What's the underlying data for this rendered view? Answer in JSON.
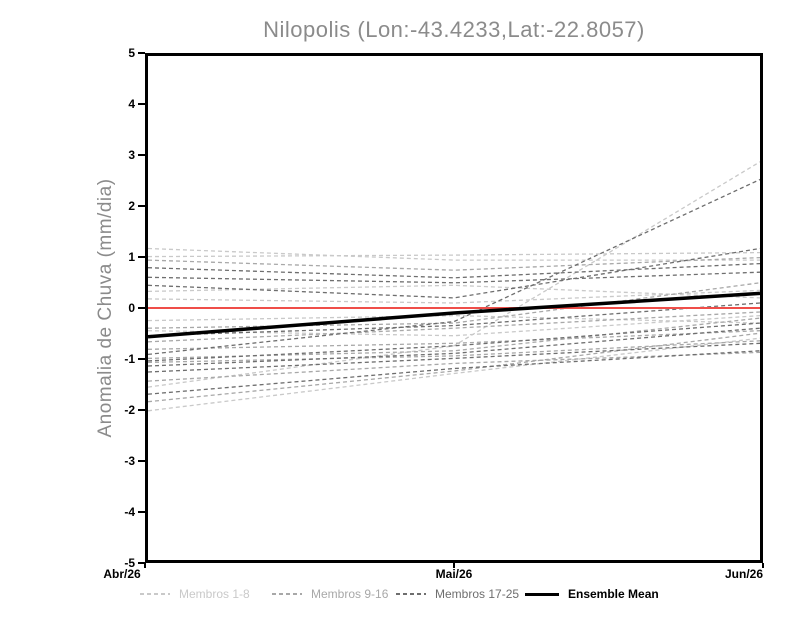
{
  "chart_data": {
    "type": "line",
    "title": "Nilopolis (Lon:-43.4233,Lat:-22.8057)",
    "ylabel": "Anomalia de Chuva (mm/dia)",
    "xlabel": "",
    "x_tick_labels": [
      "Abr/26",
      "Mai/26",
      "Jun/26"
    ],
    "y_ticks": [
      5,
      4,
      3,
      2,
      1,
      0,
      -1,
      -2,
      -3,
      -4,
      -5
    ],
    "ylim": [
      -5,
      5
    ],
    "grid": false,
    "legend_position": "bottom",
    "frame_color": "#000000",
    "zero_line": {
      "name": "zero-line",
      "color": "#ef4e49",
      "values": [
        0,
        0,
        0
      ],
      "width": 2
    },
    "series": [
      {
        "name": "Membros 1-8",
        "color": "#c9c9c9",
        "style": "dashed",
        "members": [
          [
            1.18,
            0.95,
            0.95
          ],
          [
            1.02,
            1.05,
            1.1
          ],
          [
            0.33,
            0.45,
            0.2
          ],
          [
            0.18,
            0.1,
            0.35
          ],
          [
            -0.25,
            -0.15,
            -0.3
          ],
          [
            -1.57,
            -0.75,
            2.9
          ],
          [
            -2.04,
            -1.3,
            -0.6
          ],
          [
            -0.45,
            -0.55,
            -0.15
          ]
        ]
      },
      {
        "name": "Membros 9-16",
        "color": "#a8a8a8",
        "style": "dashed",
        "members": [
          [
            -0.67,
            -0.4,
            -0.08
          ],
          [
            -0.82,
            -0.7,
            -0.45
          ],
          [
            -1.0,
            -0.85,
            -0.2
          ],
          [
            -1.08,
            -0.95,
            -0.65
          ],
          [
            -1.45,
            -1.1,
            -0.88
          ],
          [
            -1.86,
            -1.25,
            -0.5
          ],
          [
            -0.4,
            -0.3,
            0.5
          ],
          [
            0.95,
            0.75,
            1.0
          ]
        ]
      },
      {
        "name": "Membros 17-25",
        "color": "#6e6e6e",
        "style": "dashed",
        "members": [
          [
            0.8,
            0.6,
            0.88
          ],
          [
            0.61,
            0.5,
            0.71
          ],
          [
            -0.92,
            -0.27,
            2.55
          ],
          [
            -1.05,
            -0.75,
            -0.3
          ],
          [
            -1.27,
            -1.0,
            -0.7
          ],
          [
            -1.71,
            -1.2,
            -0.85
          ],
          [
            -0.55,
            -0.35,
            0.1
          ],
          [
            -1.15,
            -0.9,
            -0.4
          ],
          [
            0.45,
            0.2,
            1.18
          ]
        ]
      },
      {
        "name": "Ensemble Mean",
        "color": "#000000",
        "style": "solid",
        "width": 3.5,
        "bold_label": true,
        "values": [
          -0.57,
          -0.1,
          0.29
        ]
      }
    ]
  }
}
